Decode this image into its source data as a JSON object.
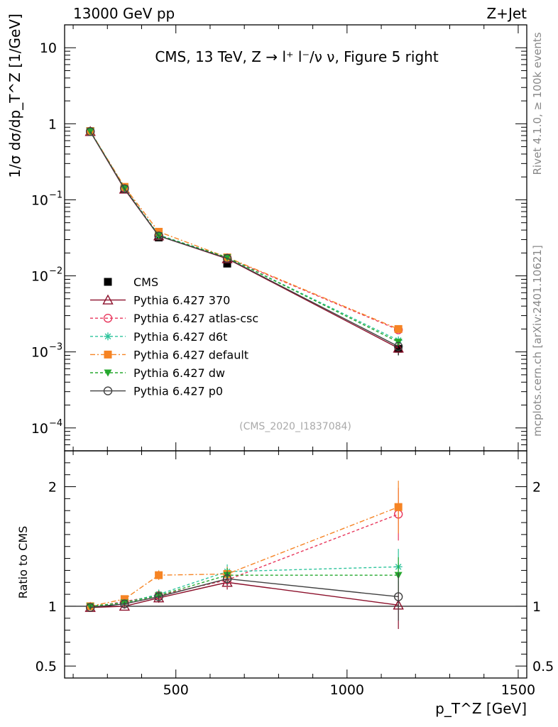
{
  "header": {
    "left": "13000 GeV pp",
    "right": "Z+Jet",
    "side_rivet": "Rivet 4.1.0, ≥ 100k events",
    "side_mcplots": "mcplots.cern.ch [arXiv:2401.10621]",
    "analysis_id": "(CMS_2020_I1837084)"
  },
  "chart_data": {
    "type": "line",
    "title": "CMS, 13 TeV, Z → l⁺ l⁻/ν ν, Figure 5 right",
    "xlabel": "p_T^Z [GeV]",
    "ylabel": "1/σ dσ/dp_T^Z [1/GeV]",
    "ratio_ylabel": "Ratio to CMS",
    "xlim": [
      175,
      1525
    ],
    "ylim": [
      5e-05,
      20
    ],
    "ratio_ylim": [
      0.4,
      2.3
    ],
    "x_ticks": [
      500,
      1000,
      1500
    ],
    "x_tick_labels": [
      "500",
      "1000",
      "1500"
    ],
    "y_ticks": [
      10,
      1,
      0.1,
      0.01,
      0.001,
      0.0001
    ],
    "y_tick_labels": [
      {
        "base": "10",
        "exp": ""
      },
      {
        "base": "1",
        "exp": ""
      },
      {
        "base": "10",
        "exp": "−1"
      },
      {
        "base": "10",
        "exp": "−2"
      },
      {
        "base": "10",
        "exp": "−3"
      },
      {
        "base": "10",
        "exp": "−4"
      }
    ],
    "ratio_ticks": [
      0.5,
      1,
      2
    ],
    "ratio_tick_labels": [
      "0.5",
      "1",
      "2"
    ],
    "x": [
      250,
      350,
      450,
      650,
      1150
    ],
    "data": {
      "name": "CMS",
      "values": [
        0.8,
        0.14,
        0.032,
        0.0145,
        0.0011
      ],
      "errors": [
        0.03,
        0.006,
        0.0015,
        0.0008,
        0.0002
      ],
      "color": "#000000"
    },
    "series": [
      {
        "name": "Pythia 6.427 370",
        "values": [
          0.79,
          0.138,
          0.0335,
          0.0168,
          0.00112
        ],
        "ratio": [
          0.99,
          1.0,
          1.07,
          1.2,
          1.01
        ],
        "ratio_err": [
          0.02,
          0.02,
          0.04,
          0.06,
          0.2
        ],
        "color": "#8b0f2a",
        "dash": "",
        "marker": "tri-open"
      },
      {
        "name": "Pythia 6.427 atlas-csc",
        "values": [
          0.79,
          0.145,
          0.034,
          0.0172,
          0.00195
        ],
        "ratio": [
          0.99,
          1.04,
          1.09,
          1.22,
          1.77
        ],
        "ratio_err": [
          0.02,
          0.02,
          0.04,
          0.06,
          0.22
        ],
        "color": "#e8365c",
        "dash": "4,3",
        "marker": "circle-open"
      },
      {
        "name": "Pythia 6.427 d6t",
        "values": [
          0.8,
          0.143,
          0.0345,
          0.0175,
          0.00142
        ],
        "ratio": [
          1.0,
          1.03,
          1.1,
          1.29,
          1.33
        ],
        "ratio_err": [
          0.02,
          0.02,
          0.04,
          0.06,
          0.15
        ],
        "color": "#2ec49c",
        "dash": "4,3",
        "marker": "star"
      },
      {
        "name": "Pythia 6.427 default",
        "values": [
          0.8,
          0.148,
          0.038,
          0.0175,
          0.002
        ],
        "ratio": [
          1.0,
          1.06,
          1.26,
          1.27,
          1.83
        ],
        "ratio_err": [
          0.02,
          0.02,
          0.04,
          0.06,
          0.22
        ],
        "color": "#f68424",
        "dash": "7,3,2,3",
        "marker": "square-filled"
      },
      {
        "name": "Pythia 6.427 dw",
        "values": [
          0.8,
          0.142,
          0.034,
          0.0175,
          0.00135
        ],
        "ratio": [
          1.0,
          1.03,
          1.09,
          1.26,
          1.26
        ],
        "ratio_err": [
          0.02,
          0.02,
          0.04,
          0.06,
          0.15
        ],
        "color": "#26a82e",
        "dash": "4,3",
        "marker": "tri-down-filled"
      },
      {
        "name": "Pythia 6.427 p0",
        "values": [
          0.79,
          0.14,
          0.0335,
          0.017,
          0.00118
        ],
        "ratio": [
          0.99,
          1.02,
          1.08,
          1.23,
          1.08
        ],
        "ratio_err": [
          0.02,
          0.02,
          0.04,
          0.06,
          0.2
        ],
        "color": "#404040",
        "dash": "",
        "marker": "circle-open"
      }
    ]
  }
}
